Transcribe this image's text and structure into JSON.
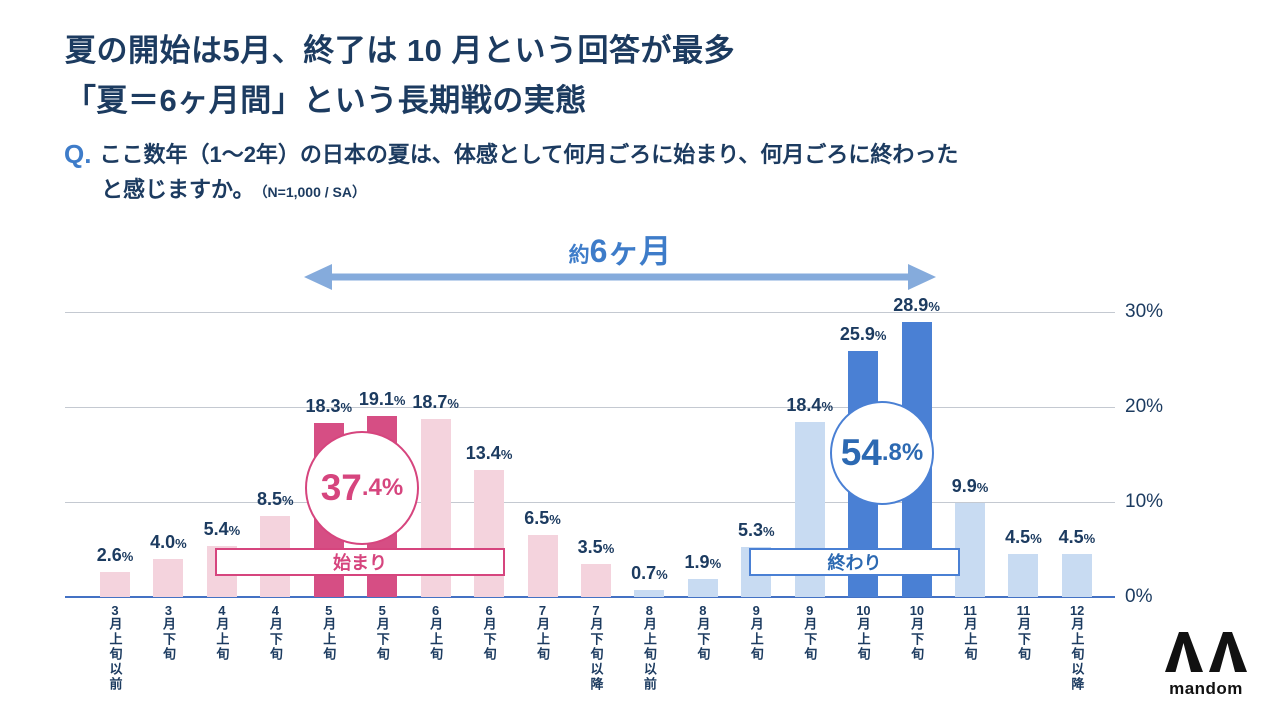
{
  "title": {
    "line1": "夏の開始は5月、終了は 10 月という回答が最多",
    "line2": "「夏＝6ヶ月間」という長期戦の実態"
  },
  "question": {
    "prefix": "Q.",
    "line1": "ここ数年（1～2年）の日本の夏は、体感として何月ごろに始まり、何月ごろに終わった",
    "line2": "と感じますか。",
    "note": "（N=1,000 / SA）"
  },
  "span_annotation": {
    "prefix": "約",
    "label": "6ヶ月"
  },
  "chart_data": {
    "type": "bar",
    "categories": [
      "3月上旬以前",
      "3月下旬",
      "4月上旬",
      "4月下旬",
      "5月上旬",
      "5月下旬",
      "6月上旬",
      "6月下旬",
      "7月上旬",
      "7月下旬以降",
      "8月上旬以前",
      "8月下旬",
      "9月上旬",
      "9月下旬",
      "10月上旬",
      "10月下旬",
      "11月上旬",
      "11月下旬",
      "12月上旬以降"
    ],
    "values": [
      2.6,
      4.0,
      5.4,
      8.5,
      18.3,
      19.1,
      18.7,
      13.4,
      6.5,
      3.5,
      0.7,
      1.9,
      5.3,
      18.4,
      25.9,
      28.9,
      9.9,
      4.5,
      4.5
    ],
    "value_labels": [
      "2.6%",
      "4.0%",
      "5.4%",
      "8.5%",
      "18.3%",
      "19.1%",
      "18.7%",
      "13.4%",
      "6.5%",
      "3.5%",
      "0.7%",
      "1.9%",
      "5.3%",
      "18.4%",
      "25.9%",
      "28.9%",
      "9.9%",
      "4.5%",
      "4.5%"
    ],
    "bar_styles": [
      "pink_light",
      "pink_light",
      "pink_light",
      "pink_light",
      "pink_dark",
      "pink_dark",
      "pink_light",
      "pink_light",
      "pink_light",
      "pink_light",
      "blue_light",
      "blue_light",
      "blue_light",
      "blue_light",
      "blue_dark",
      "blue_dark",
      "blue_light",
      "blue_light",
      "blue_light"
    ],
    "colors": {
      "pink_light": "#f4d3dd",
      "pink_dark": "#d64e84",
      "blue_light": "#c8dbf2",
      "blue_dark": "#4a80d4",
      "axis": "#4472c4",
      "grid": "#c4c9d1",
      "navy_text": "#1c3b60",
      "accent_blue": "#3e7cc9",
      "arrow": "#85abdc"
    },
    "ylim": [
      0,
      30
    ],
    "yticks": [
      {
        "label": "30%",
        "value": 30
      },
      {
        "label": "20%",
        "value": 20
      },
      {
        "label": "10%",
        "value": 10
      },
      {
        "label": "0%",
        "value": 0
      }
    ],
    "grid": true,
    "legend_position": "none",
    "start_badge": "始まり",
    "end_badge": "終わり",
    "start_total": {
      "big": "37",
      "small": ".4%"
    },
    "end_total": {
      "big": "54",
      "small": ".8%"
    }
  },
  "logo": {
    "text": "mandom"
  }
}
